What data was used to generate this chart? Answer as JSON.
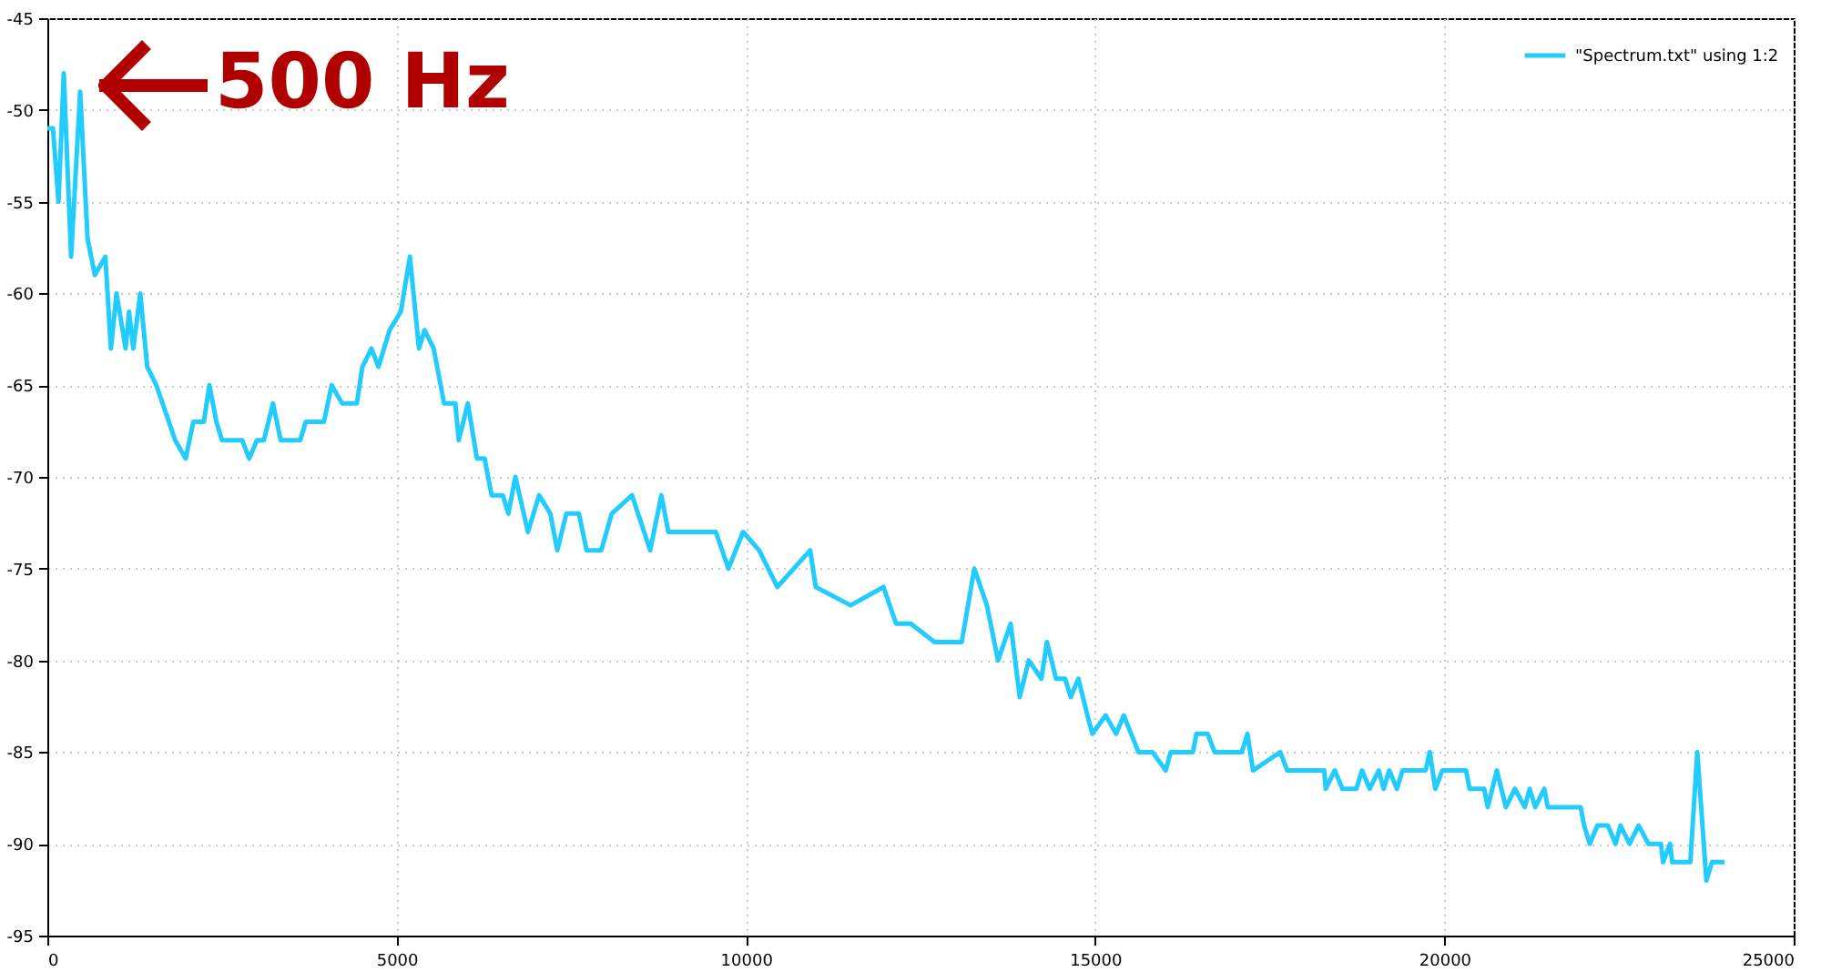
{
  "chart_data": {
    "type": "line",
    "annotations": [
      "500 Hz"
    ],
    "xlim": [
      0,
      25000
    ],
    "xticks": [
      0,
      5000,
      10000,
      15000,
      20000,
      25000
    ],
    "ylim": [
      -95,
      -45
    ],
    "yticks": [
      -95,
      -90,
      -85,
      -80,
      -75,
      -70,
      -65,
      -60,
      -55,
      -50,
      -45
    ],
    "grid": true,
    "legend": "top right",
    "line_style": "solid",
    "marker": "none",
    "x": [
      0,
      80,
      160,
      235,
      340,
      470,
      575,
      680,
      830,
      910,
      990,
      1120,
      1170,
      1230,
      1330,
      1430,
      1560,
      1830,
      1980,
      2090,
      2240,
      2320,
      2420,
      2500,
      2790,
      2890,
      3000,
      3100,
      3230,
      3340,
      3620,
      3700,
      3960,
      4070,
      4220,
      4430,
      4510,
      4640,
      4740,
      4900,
      5060,
      5190,
      5320,
      5400,
      5530,
      5680,
      5840,
      5890,
      6020,
      6150,
      6260,
      6360,
      6520,
      6600,
      6700,
      6880,
      7040,
      7200,
      7300,
      7430,
      7610,
      7720,
      7930,
      8080,
      8370,
      8630,
      8790,
      8890,
      9310,
      9570,
      9750,
      9960,
      10190,
      10450,
      10920,
      11000,
      11500,
      11970,
      12150,
      12360,
      12700,
      13090,
      13270,
      13450,
      13610,
      13790,
      13920,
      14050,
      14230,
      14310,
      14440,
      14570,
      14650,
      14760,
      14890,
      14960,
      15150,
      15300,
      15410,
      15620,
      15820,
      16010,
      16080,
      16400,
      16450,
      16610,
      16710,
      17100,
      17180,
      17260,
      17650,
      17750,
      18280,
      18300,
      18430,
      18540,
      18740,
      18820,
      18930,
      19060,
      19130,
      19210,
      19320,
      19400,
      19730,
      19790,
      19870,
      19970,
      20310,
      20360,
      20570,
      20620,
      20750,
      20880,
      21010,
      21150,
      21220,
      21300,
      21430,
      21480,
      21950,
      22000,
      22080,
      22190,
      22340,
      22450,
      22520,
      22650,
      22780,
      22920,
      23100,
      23130,
      23230,
      23260,
      23520,
      23620,
      23750,
      23830,
      24010
    ],
    "series": [
      {
        "name": "\"Spectrum.txt\" using 1:2",
        "color": "#22ccff",
        "values": [
          -51,
          -51,
          -55,
          -48,
          -58,
          -49,
          -57,
          -59,
          -58,
          -63,
          -60,
          -63,
          -61,
          -63,
          -60,
          -64,
          -65,
          -68,
          -69,
          -67,
          -67,
          -65,
          -67,
          -68,
          -68,
          -69,
          -68,
          -68,
          -66,
          -68,
          -68,
          -67,
          -67,
          -65,
          -66,
          -66,
          -64,
          -63,
          -64,
          -62,
          -61,
          -58,
          -63,
          -62,
          -63,
          -66,
          -66,
          -68,
          -66,
          -69,
          -69,
          -71,
          -71,
          -72,
          -70,
          -73,
          -71,
          -72,
          -74,
          -72,
          -72,
          -74,
          -74,
          -72,
          -71,
          -74,
          -71,
          -73,
          -73,
          -73,
          -75,
          -73,
          -74,
          -76,
          -74,
          -76,
          -77,
          -76,
          -78,
          -78,
          -79,
          -79,
          -75,
          -77,
          -80,
          -78,
          -82,
          -80,
          -81,
          -79,
          -81,
          -81,
          -82,
          -81,
          -83,
          -84,
          -83,
          -84,
          -83,
          -85,
          -85,
          -86,
          -85,
          -85,
          -84,
          -84,
          -85,
          -85,
          -84,
          -86,
          -85,
          -86,
          -86,
          -87,
          -86,
          -87,
          -87,
          -86,
          -87,
          -86,
          -87,
          -86,
          -87,
          -86,
          -86,
          -85,
          -87,
          -86,
          -86,
          -87,
          -87,
          -88,
          -86,
          -88,
          -87,
          -88,
          -87,
          -88,
          -87,
          -88,
          -88,
          -89,
          -90,
          -89,
          -89,
          -90,
          -89,
          -90,
          -89,
          -90,
          -90,
          -91,
          -90,
          -91,
          -91,
          -85,
          -92,
          -91,
          -91
        ]
      }
    ]
  }
}
